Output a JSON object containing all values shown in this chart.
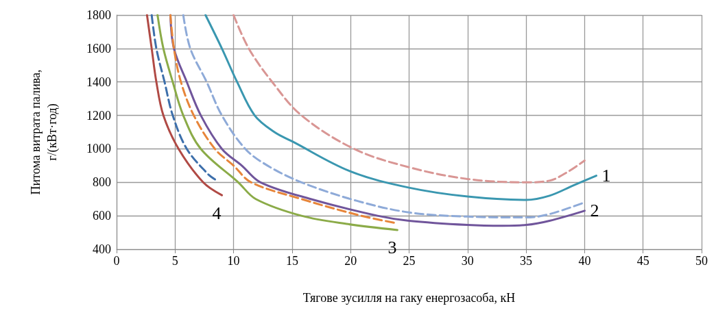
{
  "chart_data": {
    "type": "line",
    "xlabel": "Тягове зусилля на гаку енергозасоба, кН",
    "ylabel": "Питома витрата палива,\nг/(кВт·год)",
    "xlim": [
      0,
      50
    ],
    "xticks": [
      0,
      5,
      10,
      15,
      20,
      25,
      30,
      35,
      40,
      45,
      50
    ],
    "ylim": [
      400,
      1800
    ],
    "yticks": [
      400,
      600,
      800,
      1000,
      1200,
      1400,
      1600,
      1800
    ],
    "grid": true,
    "marker": "none",
    "series": [
      {
        "color": "#d99694",
        "line_style": "dashed",
        "x": [
          10,
          11.3,
          13.3,
          15.8,
          20.3,
          25,
          30,
          35,
          37,
          38.5,
          40
        ],
        "values": [
          1800,
          1600,
          1400,
          1200,
          1000,
          890,
          820,
          800,
          810,
          860,
          930
        ]
      },
      {
        "name": "1",
        "color": "#3a97b0",
        "line_style": "solid",
        "x": [
          7.6,
          9,
          10.3,
          11.8,
          13.5,
          15,
          20,
          25,
          30,
          35,
          37,
          39,
          41
        ],
        "values": [
          1800,
          1600,
          1400,
          1200,
          1100,
          1045,
          865,
          768,
          715,
          695,
          720,
          780,
          840
        ]
      },
      {
        "color": "#8eaad8",
        "line_style": "dashed",
        "x": [
          5.7,
          6.3,
          7.7,
          9,
          11,
          12.9,
          15.8,
          20.5,
          25,
          30,
          35,
          37,
          40
        ],
        "values": [
          1800,
          1600,
          1400,
          1200,
          1000,
          900,
          800,
          690,
          620,
          595,
          590,
          610,
          680
        ]
      },
      {
        "name": "2",
        "color": "#70559b",
        "line_style": "solid",
        "x": [
          4.6,
          4.9,
          6,
          7.2,
          9,
          10.7,
          12.3,
          16.6,
          22.3,
          25,
          30,
          33,
          35,
          37,
          40
        ],
        "values": [
          1800,
          1600,
          1400,
          1200,
          1000,
          900,
          800,
          700,
          600,
          570,
          545,
          540,
          545,
          570,
          630
        ]
      },
      {
        "color": "#e7853a",
        "line_style": "dashed",
        "x": [
          4.6,
          4.9,
          5.5,
          6.6,
          8.4,
          10,
          11.5,
          15.8,
          20.9,
          24
        ],
        "values": [
          1800,
          1600,
          1400,
          1200,
          1000,
          900,
          800,
          700,
          600,
          555
        ]
      },
      {
        "name": "3",
        "color": "#8bab48",
        "line_style": "solid",
        "x": [
          3.5,
          4,
          4.8,
          5.7,
          7.2,
          10.4,
          11.9,
          15.8,
          19.8,
          24
        ],
        "values": [
          1800,
          1600,
          1400,
          1200,
          1000,
          800,
          700,
          600,
          550,
          515
        ]
      },
      {
        "color": "#3d6fab",
        "line_style": "dashed",
        "x": [
          3,
          3.4,
          4.1,
          4.8,
          6,
          7.8,
          8.5
        ],
        "values": [
          1800,
          1600,
          1400,
          1200,
          1000,
          850,
          813
        ]
      },
      {
        "name": "4",
        "color": "#b04a45",
        "line_style": "solid",
        "x": [
          2.6,
          3,
          3.4,
          4,
          5.3,
          7.4,
          9
        ],
        "values": [
          1800,
          1600,
          1400,
          1200,
          1000,
          800,
          723
        ]
      }
    ]
  }
}
